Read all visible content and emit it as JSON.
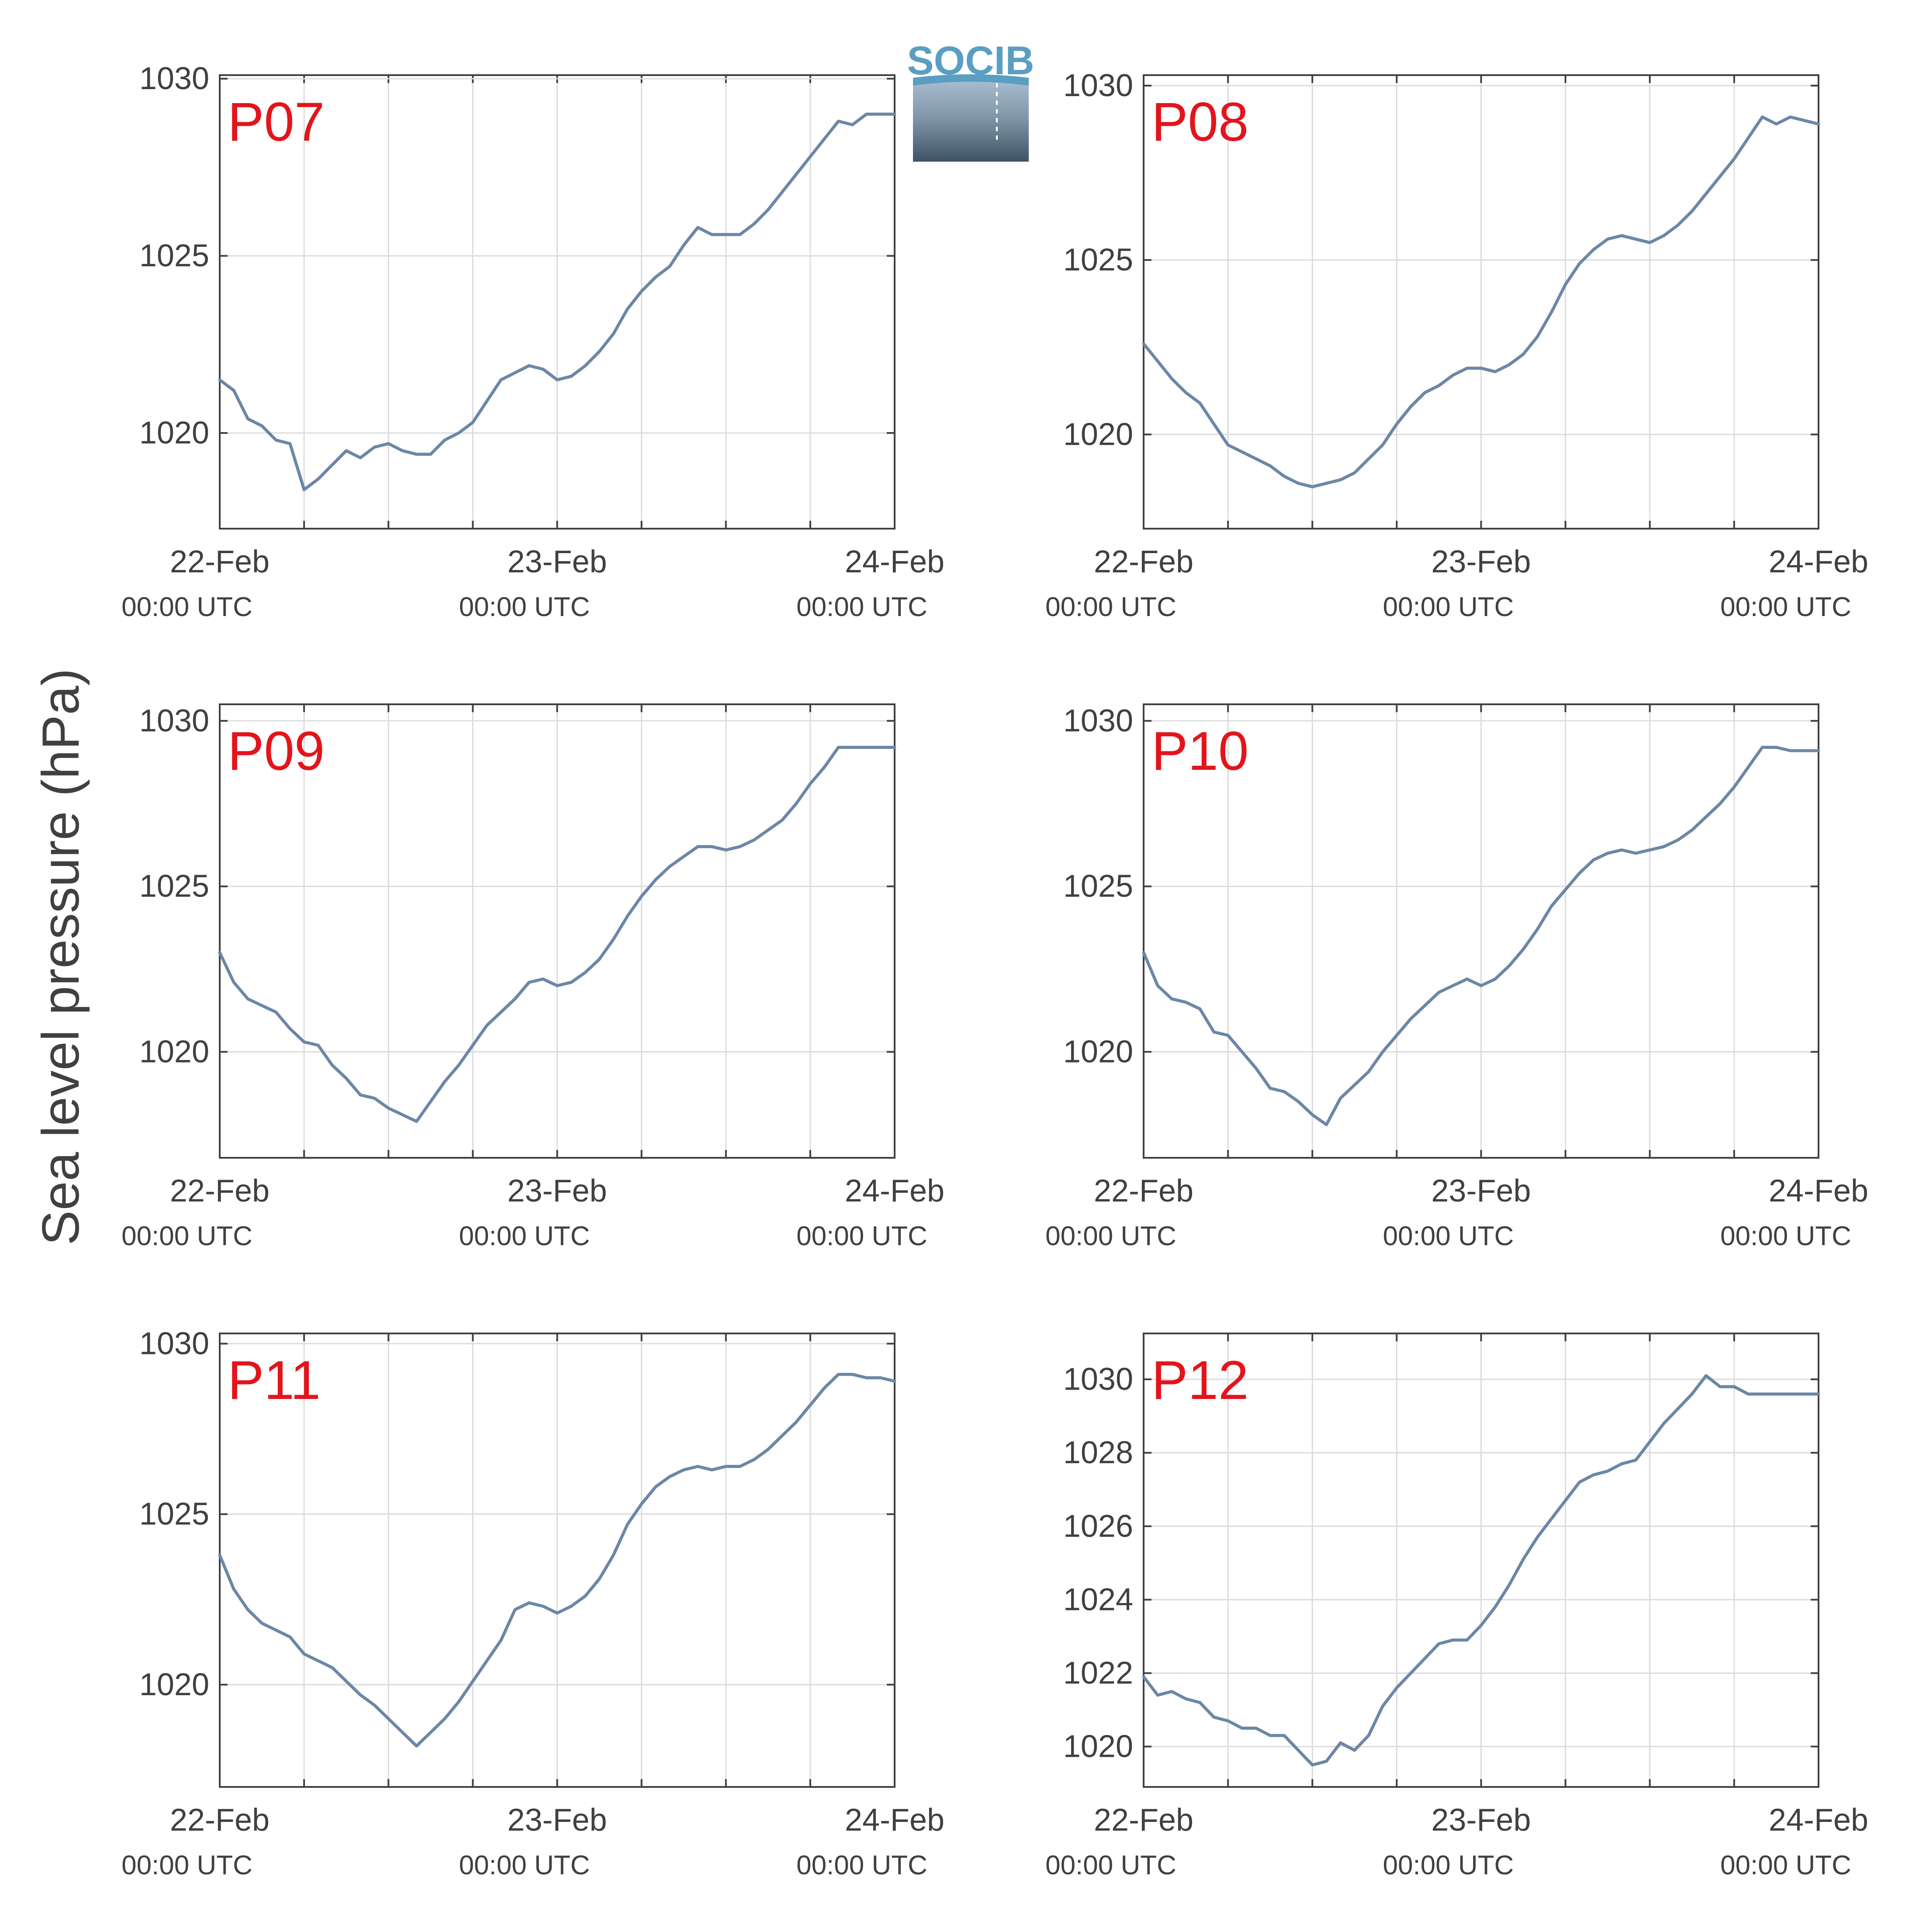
{
  "ylabel": "Sea level pressure (hPa)",
  "logo": {
    "text": "SOCIB"
  },
  "colors": {
    "line": "#6b87a6",
    "station": "#e3141b",
    "grid": "#dcdcdc",
    "axis": "#404040"
  },
  "chart_data": [
    {
      "type": "line",
      "station": "P07",
      "ylabel": "Sea level pressure (hPa)",
      "xlim": [
        0,
        48
      ],
      "ylim": [
        1017.3,
        1030.1
      ],
      "x_ticks": [
        {
          "date": "22-Feb",
          "time": "00:00 UTC"
        },
        {
          "date": "23-Feb",
          "time": "00:00 UTC"
        },
        {
          "date": "24-Feb",
          "time": "00:00 UTC"
        }
      ],
      "y_ticks": [
        "1020",
        "1025",
        "1030"
      ],
      "y_tick_values": [
        1020,
        1025,
        1030
      ],
      "grid": true,
      "series": [
        {
          "x": [
            0,
            1,
            2,
            3,
            4,
            5,
            6,
            7,
            8,
            9,
            10,
            11,
            12,
            13,
            14,
            15,
            16,
            17,
            18,
            19,
            20,
            21,
            22,
            23,
            24,
            25,
            26,
            27,
            28,
            29,
            30,
            31,
            32,
            33,
            34,
            35,
            36,
            37,
            38,
            39,
            40,
            41,
            42,
            43,
            44,
            45,
            46,
            47,
            48
          ],
          "y": [
            1021.5,
            1021.2,
            1020.4,
            1020.2,
            1019.8,
            1019.7,
            1018.4,
            1018.7,
            1019.1,
            1019.5,
            1019.3,
            1019.6,
            1019.7,
            1019.5,
            1019.4,
            1019.4,
            1019.8,
            1020.0,
            1020.3,
            1020.9,
            1021.5,
            1021.7,
            1021.9,
            1021.8,
            1021.5,
            1021.6,
            1021.9,
            1022.3,
            1022.8,
            1023.5,
            1024.0,
            1024.4,
            1024.7,
            1025.3,
            1025.8,
            1025.6,
            1025.6,
            1025.6,
            1025.9,
            1026.3,
            1026.8,
            1027.3,
            1027.8,
            1028.3,
            1028.8,
            1028.7,
            1029.0,
            1029.0,
            1029.0
          ]
        }
      ]
    },
    {
      "type": "line",
      "station": "P08",
      "ylabel": "Sea level pressure (hPa)",
      "xlim": [
        0,
        48
      ],
      "ylim": [
        1017.3,
        1030.3
      ],
      "x_ticks": [
        {
          "date": "22-Feb",
          "time": "00:00 UTC"
        },
        {
          "date": "23-Feb",
          "time": "00:00 UTC"
        },
        {
          "date": "24-Feb",
          "time": "00:00 UTC"
        }
      ],
      "y_ticks": [
        "1020",
        "1025",
        "1030"
      ],
      "y_tick_values": [
        1020,
        1025,
        1030
      ],
      "grid": true,
      "series": [
        {
          "x": [
            0,
            1,
            2,
            3,
            4,
            5,
            6,
            7,
            8,
            9,
            10,
            11,
            12,
            13,
            14,
            15,
            16,
            17,
            18,
            19,
            20,
            21,
            22,
            23,
            24,
            25,
            26,
            27,
            28,
            29,
            30,
            31,
            32,
            33,
            34,
            35,
            36,
            37,
            38,
            39,
            40,
            41,
            42,
            43,
            44,
            45,
            46,
            47,
            48
          ],
          "y": [
            1022.6,
            1022.1,
            1021.6,
            1021.2,
            1020.9,
            1020.3,
            1019.7,
            1019.5,
            1019.3,
            1019.1,
            1018.8,
            1018.6,
            1018.5,
            1018.6,
            1018.7,
            1018.9,
            1019.3,
            1019.7,
            1020.3,
            1020.8,
            1021.2,
            1021.4,
            1021.7,
            1021.9,
            1021.9,
            1021.8,
            1022.0,
            1022.3,
            1022.8,
            1023.5,
            1024.3,
            1024.9,
            1025.3,
            1025.6,
            1025.7,
            1025.6,
            1025.5,
            1025.7,
            1026.0,
            1026.4,
            1026.9,
            1027.4,
            1027.9,
            1028.5,
            1029.1,
            1028.9,
            1029.1,
            1029.0,
            1028.9
          ]
        }
      ]
    },
    {
      "type": "line",
      "station": "P09",
      "ylabel": "Sea level pressure (hPa)",
      "xlim": [
        0,
        48
      ],
      "ylim": [
        1016.8,
        1030.5
      ],
      "x_ticks": [
        {
          "date": "22-Feb",
          "time": "00:00 UTC"
        },
        {
          "date": "23-Feb",
          "time": "00:00 UTC"
        },
        {
          "date": "24-Feb",
          "time": "00:00 UTC"
        }
      ],
      "y_ticks": [
        "1020",
        "1025",
        "1030"
      ],
      "y_tick_values": [
        1020,
        1025,
        1030
      ],
      "grid": true,
      "series": [
        {
          "x": [
            0,
            1,
            2,
            3,
            4,
            5,
            6,
            7,
            8,
            9,
            10,
            11,
            12,
            13,
            14,
            15,
            16,
            17,
            18,
            19,
            20,
            21,
            22,
            23,
            24,
            25,
            26,
            27,
            28,
            29,
            30,
            31,
            32,
            33,
            34,
            35,
            36,
            37,
            38,
            39,
            40,
            41,
            42,
            43,
            44,
            45,
            46,
            47,
            48
          ],
          "y": [
            1023.0,
            1022.1,
            1021.6,
            1021.4,
            1021.2,
            1020.7,
            1020.3,
            1020.2,
            1019.6,
            1019.2,
            1018.7,
            1018.6,
            1018.3,
            1018.1,
            1017.9,
            1018.5,
            1019.1,
            1019.6,
            1020.2,
            1020.8,
            1021.2,
            1021.6,
            1022.1,
            1022.2,
            1022.0,
            1022.1,
            1022.4,
            1022.8,
            1023.4,
            1024.1,
            1024.7,
            1025.2,
            1025.6,
            1025.9,
            1026.2,
            1026.2,
            1026.1,
            1026.2,
            1026.4,
            1026.7,
            1027.0,
            1027.5,
            1028.1,
            1028.6,
            1029.2,
            1029.2,
            1029.2,
            1029.2,
            1029.2
          ]
        }
      ]
    },
    {
      "type": "line",
      "station": "P10",
      "ylabel": "Sea level pressure (hPa)",
      "xlim": [
        0,
        48
      ],
      "ylim": [
        1016.8,
        1030.5
      ],
      "x_ticks": [
        {
          "date": "22-Feb",
          "time": "00:00 UTC"
        },
        {
          "date": "23-Feb",
          "time": "00:00 UTC"
        },
        {
          "date": "24-Feb",
          "time": "00:00 UTC"
        }
      ],
      "y_ticks": [
        "1020",
        "1025",
        "1030"
      ],
      "y_tick_values": [
        1020,
        1025,
        1030
      ],
      "grid": true,
      "series": [
        {
          "x": [
            0,
            1,
            2,
            3,
            4,
            5,
            6,
            7,
            8,
            9,
            10,
            11,
            12,
            13,
            14,
            15,
            16,
            17,
            18,
            19,
            20,
            21,
            22,
            23,
            24,
            25,
            26,
            27,
            28,
            29,
            30,
            31,
            32,
            33,
            34,
            35,
            36,
            37,
            38,
            39,
            40,
            41,
            42,
            43,
            44,
            45,
            46,
            47,
            48
          ],
          "y": [
            1023.0,
            1022.0,
            1021.6,
            1021.5,
            1021.3,
            1020.6,
            1020.5,
            1020.0,
            1019.5,
            1018.9,
            1018.8,
            1018.5,
            1018.1,
            1017.8,
            1018.6,
            1019.0,
            1019.4,
            1020.0,
            1020.5,
            1021.0,
            1021.4,
            1021.8,
            1022.0,
            1022.2,
            1022.0,
            1022.2,
            1022.6,
            1023.1,
            1023.7,
            1024.4,
            1024.9,
            1025.4,
            1025.8,
            1026.0,
            1026.1,
            1026.0,
            1026.1,
            1026.2,
            1026.4,
            1026.7,
            1027.1,
            1027.5,
            1028.0,
            1028.6,
            1029.2,
            1029.2,
            1029.1,
            1029.1,
            1029.1
          ]
        }
      ]
    },
    {
      "type": "line",
      "station": "P11",
      "ylabel": "Sea level pressure (hPa)",
      "xlim": [
        0,
        48
      ],
      "ylim": [
        1017.0,
        1030.3
      ],
      "x_ticks": [
        {
          "date": "22-Feb",
          "time": "00:00 UTC"
        },
        {
          "date": "23-Feb",
          "time": "00:00 UTC"
        },
        {
          "date": "24-Feb",
          "time": "00:00 UTC"
        }
      ],
      "y_ticks": [
        "1020",
        "1025",
        "1030"
      ],
      "y_tick_values": [
        1020,
        1025,
        1030
      ],
      "grid": true,
      "series": [
        {
          "x": [
            0,
            1,
            2,
            3,
            4,
            5,
            6,
            7,
            8,
            9,
            10,
            11,
            12,
            13,
            14,
            15,
            16,
            17,
            18,
            19,
            20,
            21,
            22,
            23,
            24,
            25,
            26,
            27,
            28,
            29,
            30,
            31,
            32,
            33,
            34,
            35,
            36,
            37,
            38,
            39,
            40,
            41,
            42,
            43,
            44,
            45,
            46,
            47,
            48
          ],
          "y": [
            1023.8,
            1022.8,
            1022.2,
            1021.8,
            1021.6,
            1021.4,
            1020.9,
            1020.7,
            1020.5,
            1020.1,
            1019.7,
            1019.4,
            1019.0,
            1018.6,
            1018.2,
            1018.6,
            1019.0,
            1019.5,
            1020.1,
            1020.7,
            1021.3,
            1022.2,
            1022.4,
            1022.3,
            1022.1,
            1022.3,
            1022.6,
            1023.1,
            1023.8,
            1024.7,
            1025.3,
            1025.8,
            1026.1,
            1026.3,
            1026.4,
            1026.3,
            1026.4,
            1026.4,
            1026.6,
            1026.9,
            1027.3,
            1027.7,
            1028.2,
            1028.7,
            1029.1,
            1029.1,
            1029.0,
            1029.0,
            1028.9
          ]
        }
      ]
    },
    {
      "type": "line",
      "station": "P12",
      "ylabel": "Sea level pressure (hPa)",
      "xlim": [
        0,
        48
      ],
      "ylim": [
        1018.9,
        1031.25
      ],
      "x_ticks": [
        {
          "date": "22-Feb",
          "time": "00:00 UTC"
        },
        {
          "date": "23-Feb",
          "time": "00:00 UTC"
        },
        {
          "date": "24-Feb",
          "time": "00:00 UTC"
        }
      ],
      "y_ticks": [
        "1020",
        "1022",
        "1024",
        "1026",
        "1028",
        "1030"
      ],
      "y_tick_values": [
        1020,
        1022,
        1024,
        1026,
        1028,
        1030
      ],
      "grid": true,
      "series": [
        {
          "x": [
            0,
            1,
            2,
            3,
            4,
            5,
            6,
            7,
            8,
            9,
            10,
            11,
            12,
            13,
            14,
            15,
            16,
            17,
            18,
            19,
            20,
            21,
            22,
            23,
            24,
            25,
            26,
            27,
            28,
            29,
            30,
            31,
            32,
            33,
            34,
            35,
            36,
            37,
            38,
            39,
            40,
            41,
            42,
            43,
            44,
            45,
            46,
            47,
            48
          ],
          "y": [
            1021.9,
            1021.4,
            1021.5,
            1021.3,
            1021.2,
            1020.8,
            1020.7,
            1020.5,
            1020.5,
            1020.3,
            1020.3,
            1019.9,
            1019.5,
            1019.6,
            1020.1,
            1019.9,
            1020.3,
            1021.1,
            1021.6,
            1022.0,
            1022.4,
            1022.8,
            1022.9,
            1022.9,
            1023.3,
            1023.8,
            1024.4,
            1025.1,
            1025.7,
            1026.2,
            1026.7,
            1027.2,
            1027.4,
            1027.5,
            1027.7,
            1027.8,
            1028.3,
            1028.8,
            1029.2,
            1029.6,
            1030.1,
            1029.8,
            1029.8,
            1029.6,
            1029.6,
            1029.6,
            1029.6,
            1029.6,
            1029.6
          ]
        }
      ]
    }
  ]
}
